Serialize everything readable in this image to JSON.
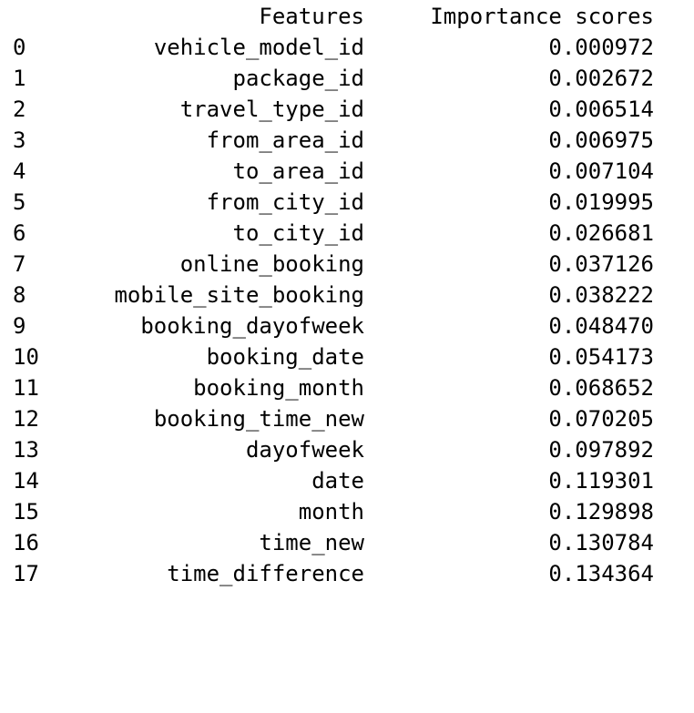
{
  "table": {
    "columns": [
      "Features",
      "Importance scores"
    ],
    "rows": [
      {
        "index": "0",
        "feature": "vehicle_model_id",
        "score": "0.000972"
      },
      {
        "index": "1",
        "feature": "package_id",
        "score": "0.002672"
      },
      {
        "index": "2",
        "feature": "travel_type_id",
        "score": "0.006514"
      },
      {
        "index": "3",
        "feature": "from_area_id",
        "score": "0.006975"
      },
      {
        "index": "4",
        "feature": "to_area_id",
        "score": "0.007104"
      },
      {
        "index": "5",
        "feature": "from_city_id",
        "score": "0.019995"
      },
      {
        "index": "6",
        "feature": "to_city_id",
        "score": "0.026681"
      },
      {
        "index": "7",
        "feature": "online_booking",
        "score": "0.037126"
      },
      {
        "index": "8",
        "feature": "mobile_site_booking",
        "score": "0.038222"
      },
      {
        "index": "9",
        "feature": "booking_dayofweek",
        "score": "0.048470"
      },
      {
        "index": "10",
        "feature": "booking_date",
        "score": "0.054173"
      },
      {
        "index": "11",
        "feature": "booking_month",
        "score": "0.068652"
      },
      {
        "index": "12",
        "feature": "booking_time_new",
        "score": "0.070205"
      },
      {
        "index": "13",
        "feature": "dayofweek",
        "score": "0.097892"
      },
      {
        "index": "14",
        "feature": "date",
        "score": "0.119301"
      },
      {
        "index": "15",
        "feature": "month",
        "score": "0.129898"
      },
      {
        "index": "16",
        "feature": "time_new",
        "score": "0.130784"
      },
      {
        "index": "17",
        "feature": "time_difference",
        "score": "0.134364"
      }
    ]
  }
}
